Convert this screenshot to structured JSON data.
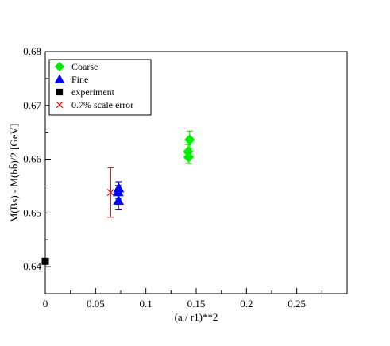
{
  "chart_data": {
    "type": "scatter",
    "title": "",
    "xlabel": "(a / r1)**2",
    "ylabel": "M(Bs) - M(bb̄)/2 [GeV]",
    "xlim": [
      0,
      0.3
    ],
    "ylim": [
      0.635,
      0.68
    ],
    "xticks": [
      0,
      0.05,
      0.1,
      0.15,
      0.2,
      0.25
    ],
    "xtick_labels": [
      "0",
      "0.05",
      "0.1",
      "0.15",
      "0.2",
      "0.25"
    ],
    "yticks": [
      0.64,
      0.65,
      0.66,
      0.67,
      0.68
    ],
    "ytick_labels": [
      "0.64",
      "0.65",
      "0.66",
      "0.67",
      "0.68"
    ],
    "grid": false,
    "legend_position": "top-left",
    "series": [
      {
        "name": "Coarse",
        "marker": "diamond",
        "color": "#00ee00",
        "points": [
          {
            "x": 0.1435,
            "y": 0.6636,
            "yerr": 0.0016
          },
          {
            "x": 0.142,
            "y": 0.6614,
            "yerr": 0.0013
          },
          {
            "x": 0.1425,
            "y": 0.6604,
            "yerr": 0.0012
          }
        ]
      },
      {
        "name": "Fine",
        "marker": "triangle-up",
        "color": "#0000ff",
        "points": [
          {
            "x": 0.073,
            "y": 0.6546,
            "yerr": 0.0012
          },
          {
            "x": 0.0725,
            "y": 0.6539,
            "yerr": 0.0012
          },
          {
            "x": 0.0728,
            "y": 0.6523,
            "yerr": 0.0016
          }
        ]
      },
      {
        "name": "experiment",
        "marker": "square",
        "color": "#000000",
        "points": [
          {
            "x": 0.0,
            "y": 0.641
          }
        ]
      },
      {
        "name": "0.7% scale error",
        "marker": "x",
        "color": "#ff0000",
        "points": [
          {
            "x": 0.065,
            "y": 0.6538,
            "yerr": 0.0046
          }
        ]
      }
    ]
  }
}
